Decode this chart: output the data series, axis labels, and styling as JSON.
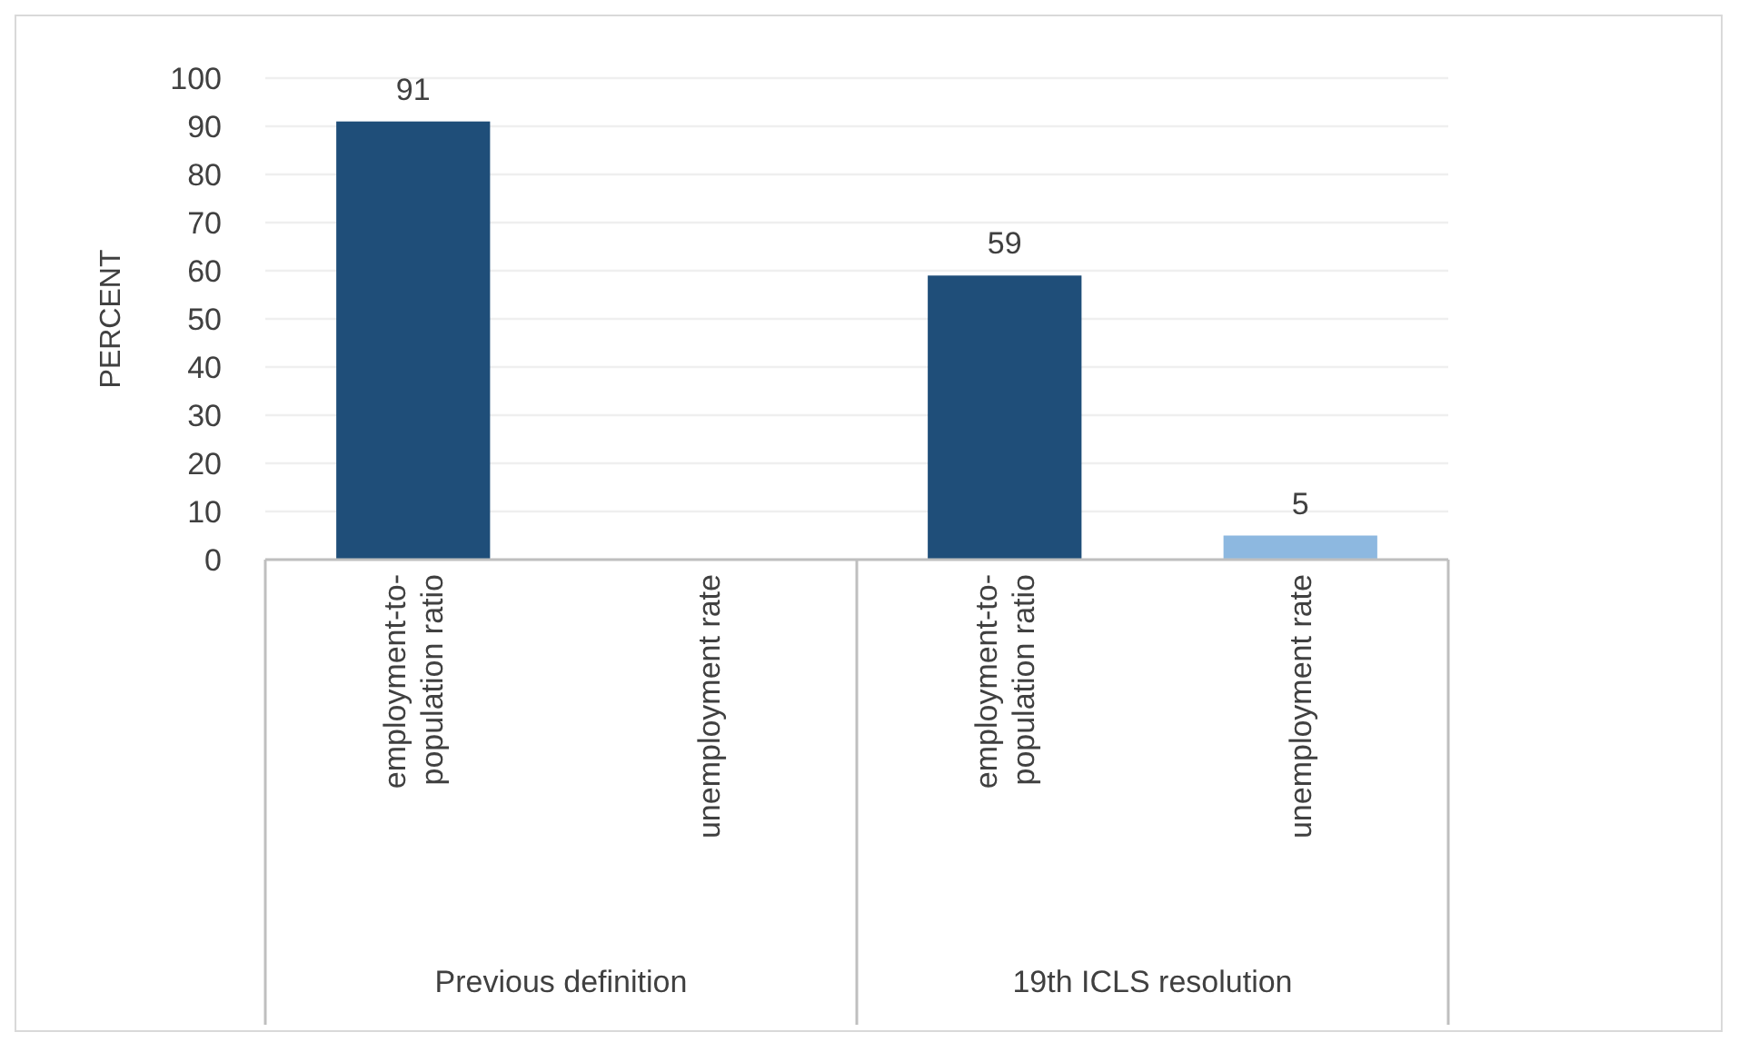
{
  "chart_data": {
    "type": "bar",
    "ylabel": "PERCENT",
    "categories": [
      "employment-to-population ratio",
      "unemployment rate",
      "employment-to-population ratio",
      "unemployment rate"
    ],
    "values": [
      91,
      null,
      59,
      5
    ],
    "colors": [
      "#1f4e79",
      null,
      "#1f4e79",
      "#8db8e0"
    ],
    "ylim": [
      0,
      100
    ],
    "yticks": [
      0,
      10,
      20,
      30,
      40,
      50,
      60,
      70,
      80,
      90,
      100
    ],
    "grid": "y",
    "data_labels": true,
    "annotations": [
      "Previous definition",
      "19th ICLS resolution"
    ]
  }
}
